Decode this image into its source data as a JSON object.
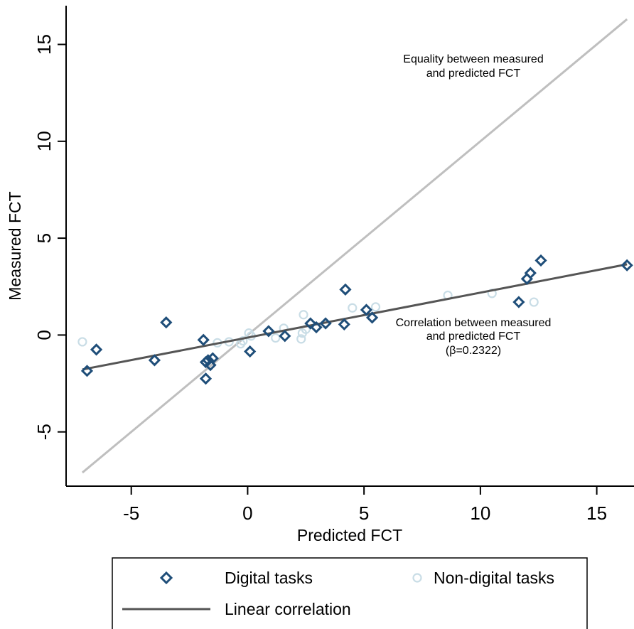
{
  "chart_data": {
    "type": "scatter",
    "xlabel": "Predicted FCT",
    "ylabel": "Measured FCT",
    "xlim": [
      -7.8,
      16.6
    ],
    "ylim": [
      -7.8,
      17
    ],
    "xticks": [
      "-5",
      "0",
      "5",
      "10",
      "15"
    ],
    "yticks": [
      "-5",
      "0",
      "5",
      "10",
      "15"
    ],
    "grid": false,
    "legend_position": "bottom",
    "annotations": {
      "equality_line1": "Equality between measured",
      "equality_line2": "and predicted FCT",
      "corr_line1": "Correlation between measured",
      "corr_line2": "and predicted FCT",
      "corr_line3": "(β=0.2322)"
    },
    "legend": {
      "digital": "Digital tasks",
      "nondigital": "Non-digital tasks",
      "linear": "Linear correlation"
    },
    "colors": {
      "digital": "#1f4e79",
      "nondigital": "#c9dde6",
      "equality_line": "#bfbfbf",
      "fit_line": "#555555"
    },
    "equality_line": {
      "x": [
        -7.1,
        16.3
      ],
      "y": [
        -7.1,
        16.3
      ]
    },
    "fit_line": {
      "x": [
        -7.1,
        16.3
      ],
      "y": [
        -1.78,
        3.65
      ]
    },
    "series": [
      {
        "name": "Digital tasks",
        "marker": "diamond",
        "points": [
          [
            -6.9,
            -1.85
          ],
          [
            -6.5,
            -0.75
          ],
          [
            -4.0,
            -1.3
          ],
          [
            -3.5,
            0.65
          ],
          [
            -1.9,
            -0.25
          ],
          [
            -1.8,
            -1.4
          ],
          [
            -1.7,
            -1.3
          ],
          [
            -1.6,
            -1.55
          ],
          [
            -1.5,
            -1.2
          ],
          [
            -1.8,
            -2.25
          ],
          [
            0.1,
            -0.85
          ],
          [
            0.9,
            0.2
          ],
          [
            1.6,
            -0.05
          ],
          [
            2.7,
            0.6
          ],
          [
            2.95,
            0.4
          ],
          [
            3.35,
            0.6
          ],
          [
            4.15,
            0.55
          ],
          [
            4.2,
            2.35
          ],
          [
            5.1,
            1.3
          ],
          [
            5.35,
            0.9
          ],
          [
            11.65,
            1.7
          ],
          [
            12.0,
            2.9
          ],
          [
            12.15,
            3.2
          ],
          [
            12.6,
            3.85
          ],
          [
            16.3,
            3.6
          ]
        ]
      },
      {
        "name": "Non-digital tasks",
        "marker": "circle",
        "points": [
          [
            -7.1,
            -0.35
          ],
          [
            -1.3,
            -0.4
          ],
          [
            -0.8,
            -0.35
          ],
          [
            -0.3,
            -0.45
          ],
          [
            -0.2,
            -0.3
          ],
          [
            0.05,
            0.1
          ],
          [
            0.15,
            -0.05
          ],
          [
            1.2,
            -0.15
          ],
          [
            1.55,
            0.35
          ],
          [
            2.3,
            -0.2
          ],
          [
            2.35,
            0.1
          ],
          [
            2.4,
            1.05
          ],
          [
            2.5,
            0.3
          ],
          [
            4.5,
            1.4
          ],
          [
            5.5,
            1.45
          ],
          [
            8.6,
            2.05
          ],
          [
            10.5,
            2.15
          ],
          [
            12.3,
            1.7
          ]
        ]
      }
    ]
  }
}
